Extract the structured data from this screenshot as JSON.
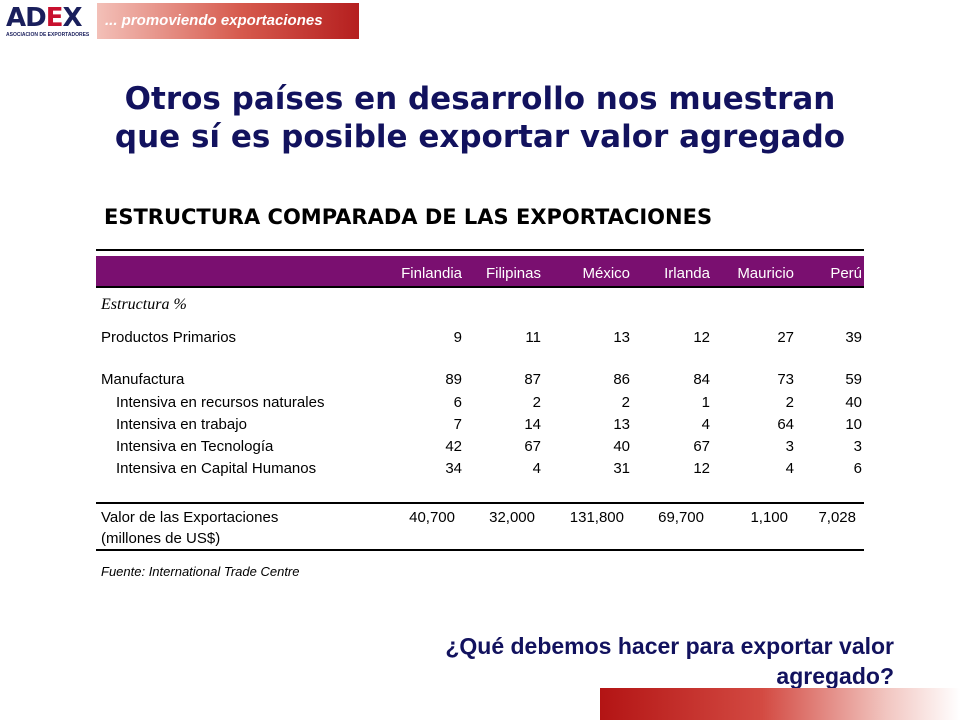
{
  "logo": {
    "text_a": "AD",
    "text_b": "E",
    "text_c": "X",
    "subtitle": "ASOCIACION DE EXPORTADORES"
  },
  "tagline": "... promoviendo  exportaciones",
  "title": {
    "line1": "Otros países en desarrollo nos muestran",
    "line2": "que sí es posible exportar valor agregado"
  },
  "table": {
    "title": "ESTRUCTURA COMPARADA DE LAS EXPORTACIONES",
    "columns": [
      "Finlandia",
      "Filipinas",
      "México",
      "Irlanda",
      "Mauricio",
      "Perú"
    ],
    "section_label": "Estructura %",
    "rows": [
      {
        "label": "Productos Primarios",
        "values": [
          "9",
          "11",
          "13",
          "12",
          "27",
          "39"
        ]
      },
      {
        "label": "Manufactura",
        "values": [
          "89",
          "87",
          "86",
          "84",
          "73",
          "59"
        ]
      },
      {
        "label": "Intensiva en recursos naturales",
        "values": [
          "6",
          "2",
          "2",
          "1",
          "2",
          "40"
        ]
      },
      {
        "label": "Intensiva en trabajo",
        "values": [
          "7",
          "14",
          "13",
          "4",
          "64",
          "10"
        ]
      },
      {
        "label": "Intensiva en Tecnología",
        "values": [
          "42",
          "67",
          "40",
          "67",
          "3",
          "3"
        ]
      },
      {
        "label": "Intensiva en Capital Humanos",
        "values": [
          "34",
          "4",
          "31",
          "12",
          "4",
          "6"
        ]
      }
    ],
    "total": {
      "label_line1": "Valor de las Exportaciones",
      "label_line2": "(millones de US$)",
      "values": [
        "40,700",
        "32,000",
        "131,800",
        "69,700",
        "1,100",
        "7,028"
      ]
    },
    "source": "Fuente: International Trade Centre"
  },
  "question": {
    "line1": "¿Qué debemos hacer para exportar valor",
    "line2": "agregado?"
  },
  "colors": {
    "title_navy": "#12125e",
    "header_purple": "#7a0f70",
    "accent_red": "#c8102e"
  }
}
